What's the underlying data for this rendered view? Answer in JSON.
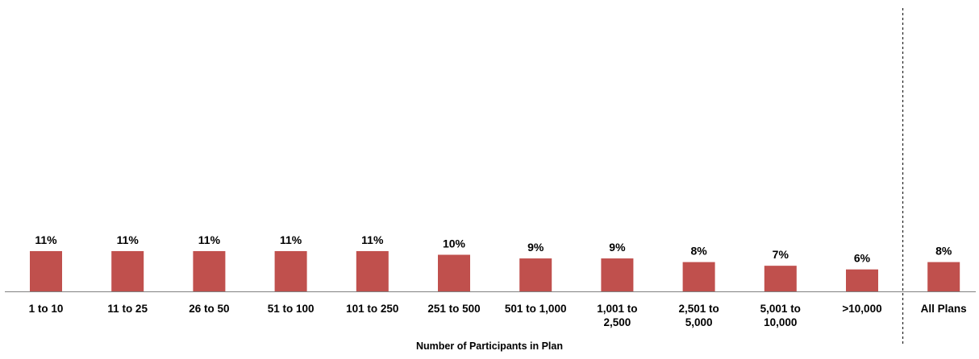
{
  "chart_data": {
    "type": "bar",
    "title": "",
    "xlabel": "Number of Participants in Plan",
    "ylabel": "",
    "ylim": [
      0,
      100
    ],
    "grid": false,
    "legend": "none",
    "categories": [
      [
        "1 to 10"
      ],
      [
        "11 to 25"
      ],
      [
        "26 to 50"
      ],
      [
        "51 to 100"
      ],
      [
        "101 to 250"
      ],
      [
        "251 to 500"
      ],
      [
        "501 to 1,000"
      ],
      [
        "1,001 to",
        "2,500"
      ],
      [
        "2,501 to",
        "5,000"
      ],
      [
        "5,001 to",
        "10,000"
      ],
      [
        ">10,000"
      ],
      [
        "All Plans"
      ]
    ],
    "values": [
      11,
      11,
      11,
      11,
      11,
      10,
      9,
      9,
      8,
      7,
      6,
      8
    ],
    "value_labels": [
      "11%",
      "11%",
      "11%",
      "11%",
      "11%",
      "10%",
      "9%",
      "9%",
      "8%",
      "7%",
      "6%",
      "8%"
    ],
    "separator_before": "All Plans",
    "colors": {
      "bar": "#C0504D",
      "axis": "#808080",
      "separator": "#000000"
    }
  }
}
